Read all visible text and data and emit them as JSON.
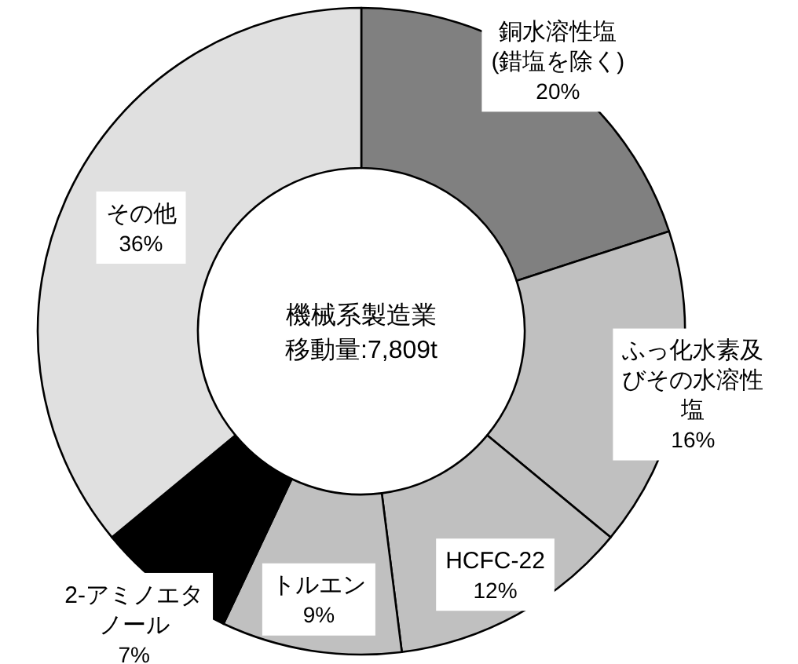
{
  "chart_data": {
    "type": "donut",
    "categories": [
      "銅水溶性塩(錯塩を除く)",
      "ふっ化水素及びその水溶性塩",
      "HCFC-22",
      "トルエン",
      "2-アミノエタノール",
      "その他"
    ],
    "values": [
      20,
      16,
      12,
      9,
      7,
      36
    ],
    "colors": [
      "#808080",
      "#c0c0c0",
      "#c0c0c0",
      "#c0c0c0",
      "#000000",
      "#e0e0e0"
    ],
    "value_labels": [
      "20%",
      "16%",
      "12%",
      "9%",
      "7%",
      "36%"
    ],
    "annotations": [
      "機械系製造業",
      "移動量:7,809t"
    ]
  }
}
